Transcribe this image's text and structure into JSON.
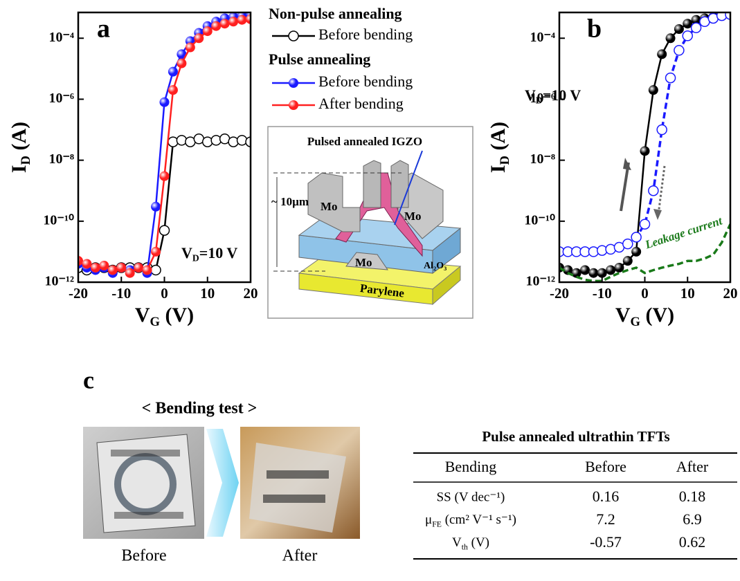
{
  "chart_data": [
    {
      "type": "line",
      "panel_label": "a",
      "x_label": {
        "main": "V",
        "sub": "G",
        "rest": " (V)"
      },
      "y_label": {
        "main": "I",
        "sub": "D",
        "rest": " (A)"
      },
      "annotation": {
        "main": "V",
        "sub": "D",
        "rest": "=10 V"
      },
      "log_y": true,
      "xlim": [
        -20,
        20
      ],
      "xticks": [
        -20,
        -10,
        0,
        10,
        20
      ],
      "ylim": [
        1e-12,
        0.0007
      ],
      "yticks": [
        {
          "value": 1e-12,
          "label": "10⁻¹²"
        },
        {
          "value": 1e-10,
          "label": "10⁻¹⁰"
        },
        {
          "value": 1e-08,
          "label": "10⁻⁸"
        },
        {
          "value": 1e-06,
          "label": "10⁻⁶"
        },
        {
          "value": 0.0001,
          "label": "10⁻⁴"
        }
      ],
      "legend_groups": [
        "Non-pulse annealing",
        "Pulse annealing"
      ],
      "x": [
        -20,
        -18,
        -16,
        -14,
        -12,
        -10,
        -8,
        -6,
        -4,
        -2,
        0,
        2,
        4,
        6,
        8,
        10,
        12,
        14,
        16,
        18,
        20
      ],
      "series": [
        {
          "name": "Before bending",
          "color": "#000000",
          "marker": "open",
          "line_style": "solid",
          "values": [
            3e-12,
            2.5e-12,
            3e-12,
            3e-12,
            2.5e-12,
            3e-12,
            3e-12,
            3e-12,
            3e-12,
            2.5e-12,
            5e-11,
            4e-08,
            4.5e-08,
            4e-08,
            5e-08,
            4e-08,
            4.5e-08,
            5e-08,
            4e-08,
            4.5e-08,
            4e-08
          ]
        },
        {
          "name": "Before bending",
          "color": "#1a1aff",
          "marker": "filled",
          "line_style": "solid",
          "values": [
            4e-12,
            3e-12,
            2.5e-12,
            3e-12,
            2e-12,
            3e-12,
            2.5e-12,
            3e-12,
            2e-12,
            3e-10,
            8e-07,
            8e-06,
            3e-05,
            8e-05,
            0.00015,
            0.00025,
            0.00035,
            0.00045,
            0.0005,
            0.00055,
            0.0006
          ]
        },
        {
          "name": "After bending",
          "color": "#ff2020",
          "marker": "filled",
          "line_style": "solid",
          "values": [
            5e-12,
            4e-12,
            3e-12,
            3.5e-12,
            2.5e-12,
            3e-12,
            2e-12,
            3e-12,
            2.5e-12,
            1e-11,
            3e-09,
            2e-06,
            1.5e-05,
            5e-05,
            0.0001,
            0.00017,
            0.00025,
            0.0003,
            0.00035,
            0.0004,
            0.00042
          ]
        }
      ]
    },
    {
      "type": "line",
      "panel_label": "b",
      "x_label": {
        "main": "V",
        "sub": "G",
        "rest": " (V)"
      },
      "y_label": {
        "main": "I",
        "sub": "D",
        "rest": " (A)"
      },
      "annotation": {
        "main": "V",
        "sub": "D",
        "rest": "=10 V"
      },
      "leakage_label": "Leakage current",
      "log_y": true,
      "xlim": [
        -20,
        20
      ],
      "xticks": [
        -20,
        -10,
        0,
        10,
        20
      ],
      "ylim": [
        1e-12,
        0.0007
      ],
      "yticks": [
        {
          "value": 1e-12,
          "label": "10⁻¹²"
        },
        {
          "value": 1e-10,
          "label": "10⁻¹⁰"
        },
        {
          "value": 1e-08,
          "label": "10⁻⁸"
        },
        {
          "value": 1e-06,
          "label": "10⁻⁶"
        },
        {
          "value": 0.0001,
          "label": "10⁻⁴"
        }
      ],
      "x": [
        -20,
        -18,
        -16,
        -14,
        -12,
        -10,
        -8,
        -6,
        -4,
        -2,
        0,
        2,
        4,
        6,
        8,
        10,
        12,
        14,
        16,
        18,
        20
      ],
      "series": [
        {
          "color": "#000000",
          "marker": "filled",
          "line_style": "solid",
          "values": [
            3e-12,
            2.5e-12,
            2e-12,
            2.5e-12,
            2e-12,
            2e-12,
            2.5e-12,
            3e-12,
            5e-12,
            1e-11,
            2e-08,
            2e-06,
            3e-05,
            0.0001,
            0.0002,
            0.0003,
            0.0004,
            0.00045,
            0.0005,
            0.00055,
            0.0006
          ]
        },
        {
          "color": "#1a1aff",
          "marker": "open",
          "line_style": "dashed",
          "values": [
            1e-11,
            1e-11,
            1e-11,
            1e-11,
            1e-11,
            1.1e-11,
            1.2e-11,
            1.4e-11,
            1.8e-11,
            3e-11,
            8e-11,
            1e-09,
            1e-07,
            5e-06,
            4e-05,
            0.00012,
            0.00022,
            0.00035,
            0.00045,
            0.00055,
            0.0006
          ]
        },
        {
          "color": "#1a7a1a",
          "marker": "none",
          "line_style": "dashed",
          "values": [
            3e-12,
            2e-12,
            1.5e-12,
            1.2e-12,
            1.1e-12,
            1.1e-12,
            1.5e-12,
            2e-12,
            2.5e-12,
            3e-12,
            2e-12,
            2.5e-12,
            3e-12,
            3.5e-12,
            4e-12,
            5e-12,
            5e-12,
            6e-12,
            8e-12,
            2e-11,
            8e-11
          ]
        }
      ]
    }
  ],
  "diagram": {
    "title": "Pulsed annealed IGZO",
    "thickness": "~ 10µm",
    "mo_labels": [
      "Mo",
      "Mo",
      "Mo"
    ],
    "dielectric": "Al₂O₃",
    "substrate": "Parylene"
  },
  "panel_c": {
    "label": "c",
    "heading": "< Bending test >",
    "photos": [
      "Before",
      "After"
    ],
    "table": {
      "title": "Pulse annealed ultrathin TFTs",
      "header": [
        "Bending",
        "Before",
        "After"
      ],
      "rows": [
        [
          "SS (V dec⁻¹)",
          0.16,
          0.18
        ],
        [
          {
            "main": "μ",
            "sub": "FE",
            "rest": " (cm² V⁻¹ s⁻¹)"
          },
          7.2,
          6.9
        ],
        [
          {
            "main": "V",
            "sub": "th",
            "rest": " (V)"
          },
          -0.57,
          0.62
        ]
      ]
    }
  }
}
